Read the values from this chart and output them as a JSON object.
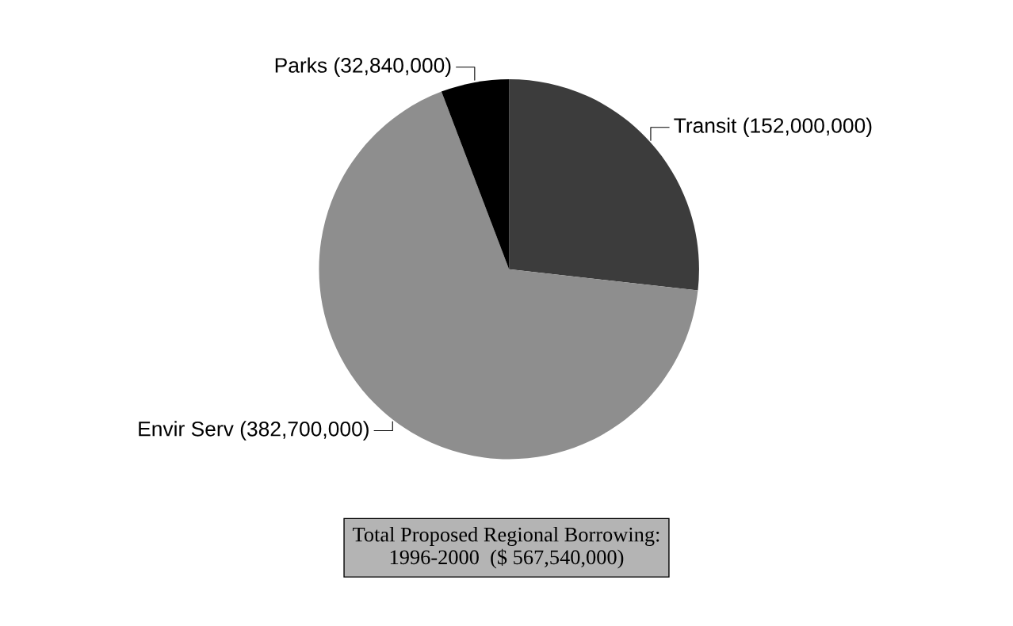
{
  "chart_data": {
    "type": "pie",
    "title": "Total Proposed Regional Borrowing:\n1996-2000  ($ 567,540,000)",
    "categories": [
      "Transit (152,000,000)",
      "Envir Serv (382,700,000)",
      "Parks (32,840,000)"
    ],
    "values": [
      152000000,
      382700000,
      32840000
    ],
    "colors": [
      "#3c3c3c",
      "#8e8e8e",
      "#000000"
    ]
  }
}
